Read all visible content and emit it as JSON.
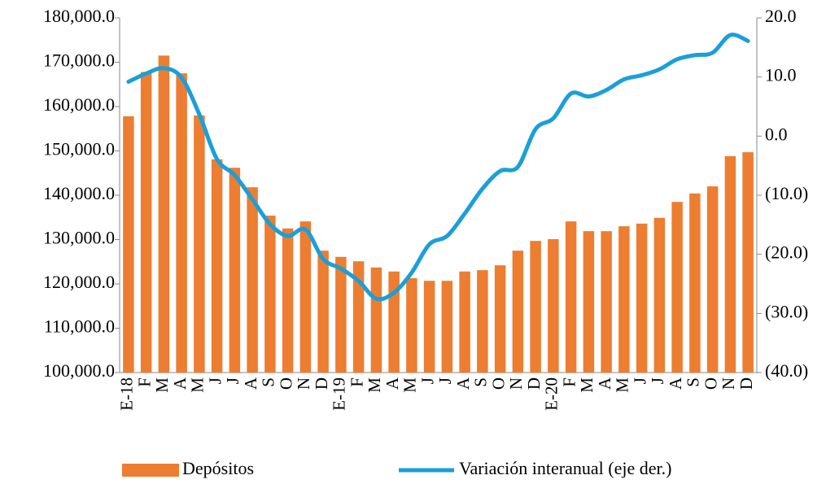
{
  "chart_data": {
    "type": "bar-line",
    "categories": [
      "E-18",
      "F",
      "M",
      "A",
      "M",
      "J",
      "J",
      "A",
      "S",
      "O",
      "N",
      "D",
      "E-19",
      "F",
      "M",
      "A",
      "M",
      "J",
      "J",
      "A",
      "S",
      "O",
      "N",
      "D",
      "E-20",
      "F",
      "M",
      "A",
      "M",
      "J",
      "J",
      "A",
      "S",
      "O",
      "N",
      "D"
    ],
    "series": [
      {
        "name": "Depósitos",
        "color": "#ed7d31",
        "type": "bar",
        "values": [
          157800,
          167800,
          171500,
          167500,
          158000,
          148100,
          146200,
          141800,
          135400,
          132500,
          134100,
          127500,
          126100,
          125100,
          123700,
          122800,
          121300,
          120700,
          120700,
          122800,
          123100,
          124200,
          127500,
          129700,
          130100,
          134100,
          131900,
          131900,
          133000,
          133600,
          134900,
          138500,
          140400,
          142000,
          148800,
          149700
        ]
      },
      {
        "name": "Variación interanual (eje der.)",
        "color": "#1a9fd9",
        "type": "line",
        "axis": "y2",
        "values": [
          9.2,
          10.6,
          11.5,
          9.9,
          3.7,
          -3.9,
          -6.6,
          -10.7,
          -14.9,
          -16.9,
          -15.8,
          -20.8,
          -22.4,
          -24.5,
          -27.5,
          -26.5,
          -23.1,
          -18.3,
          -16.9,
          -13.1,
          -8.9,
          -5.9,
          -5.2,
          1.2,
          3.0,
          7.2,
          6.7,
          7.8,
          9.6,
          10.3,
          11.3,
          13.0,
          13.7,
          14.1,
          17.1,
          16.1
        ]
      }
    ],
    "ylim": [
      100000,
      180000
    ],
    "yticks": [
      {
        "value": 100000,
        "label": "100,000.0"
      },
      {
        "value": 110000,
        "label": "110,000.0"
      },
      {
        "value": 120000,
        "label": "120,000.0"
      },
      {
        "value": 130000,
        "label": "130,000.0"
      },
      {
        "value": 140000,
        "label": "140,000.0"
      },
      {
        "value": 150000,
        "label": "150,000.0"
      },
      {
        "value": 160000,
        "label": "160,000.0"
      },
      {
        "value": 170000,
        "label": "170,000.0"
      },
      {
        "value": 180000,
        "label": "180,000.0"
      }
    ],
    "y2lim": [
      -40,
      20
    ],
    "y2ticks": [
      {
        "value": -40,
        "label": "(40.0)"
      },
      {
        "value": -30,
        "label": "(30.0)"
      },
      {
        "value": -20,
        "label": "(20.0)"
      },
      {
        "value": -10,
        "label": "(10.0)"
      },
      {
        "value": 0,
        "label": "0.0"
      },
      {
        "value": 10,
        "label": "10.0"
      },
      {
        "value": 20,
        "label": "20.0"
      }
    ],
    "legend": "bottom"
  }
}
